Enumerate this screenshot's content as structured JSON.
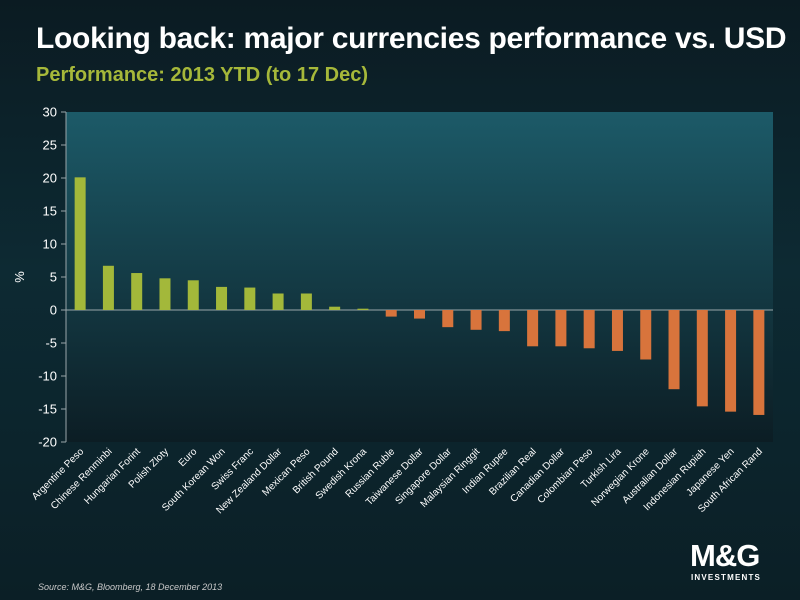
{
  "header": {
    "title": "Looking back: major currencies performance vs. USD",
    "subtitle": "Performance: 2013 YTD (to 17 Dec)"
  },
  "footer": {
    "source": "Source: M&G, Bloomberg, 18 December 2013"
  },
  "logo": {
    "brand": "M&G",
    "tagline": "INVESTMENTS"
  },
  "colors": {
    "positive": "#a3b83a",
    "negative": "#d8743c",
    "plot_bg_top": "#1c5a68",
    "plot_bg_bottom": "#0c1d24"
  },
  "chart_data": {
    "type": "bar",
    "title": "Looking back: major currencies performance vs. USD",
    "subtitle": "Performance: 2013 YTD (to 17 Dec)",
    "xlabel": "",
    "ylabel": "%",
    "ylim": [
      -20,
      30
    ],
    "yticks": [
      30,
      25,
      20,
      15,
      10,
      5,
      0,
      -5,
      -10,
      -15,
      -20
    ],
    "grid": false,
    "categories": [
      "Argentine Peso",
      "Chinese Renminbi",
      "Hungarian Forint",
      "Polish Zloty",
      "Euro",
      "South Korean Won",
      "Swiss Franc",
      "New Zealand Dollar",
      "Mexican Peso",
      "British Pound",
      "Swedish Krona",
      "Russian Ruble",
      "Taiwanese Dollar",
      "Singapore Dollar",
      "Malaysian Ringgit",
      "Indian Rupee",
      "Brazilian Real",
      "Canadian Dollar",
      "Colombian Peso",
      "Turkish Lira",
      "Norwegian Krone",
      "Australian Dollar",
      "Indonesian Rupiah",
      "Japanese Yen",
      "South African Rand"
    ],
    "values": [
      20.1,
      6.7,
      5.6,
      4.8,
      4.5,
      3.5,
      3.4,
      2.5,
      2.5,
      0.5,
      0.2,
      -1.0,
      -1.3,
      -2.6,
      -3.0,
      -3.2,
      -5.5,
      -5.5,
      -5.8,
      -6.2,
      -7.5,
      -12.0,
      -14.6,
      -15.4,
      -15.9
    ],
    "units": "%"
  }
}
